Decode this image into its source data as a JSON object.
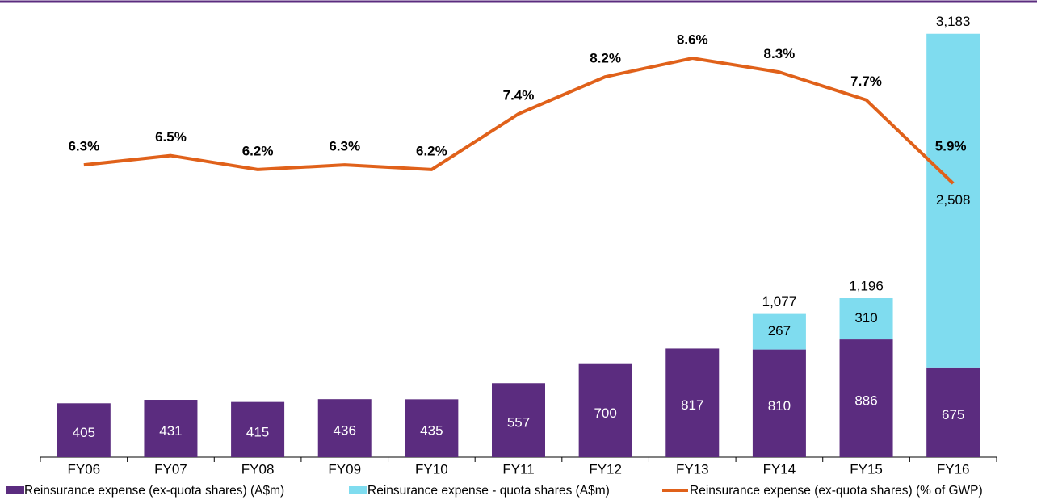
{
  "chart_data": {
    "type": "bar",
    "categories": [
      "FY06",
      "FY07",
      "FY08",
      "FY09",
      "FY10",
      "FY11",
      "FY12",
      "FY13",
      "FY14",
      "FY15",
      "FY16"
    ],
    "series": [
      {
        "name": "Reinsurance expense (ex-quota shares) (A$m)",
        "color": "#5b2c7f",
        "type": "bar",
        "values": [
          405,
          431,
          415,
          436,
          435,
          557,
          700,
          817,
          810,
          886,
          675
        ]
      },
      {
        "name": "Reinsurance expense - quota shares (A$m)",
        "color": "#7fdcef",
        "type": "bar",
        "values": [
          null,
          null,
          null,
          null,
          null,
          null,
          null,
          null,
          267,
          310,
          2508
        ],
        "value_labels": [
          null,
          null,
          null,
          null,
          null,
          null,
          null,
          null,
          "267",
          "310",
          "2,508"
        ]
      },
      {
        "name": "Reinsurance expense (ex-quota shares) (% of GWP)",
        "color": "#e0611a",
        "type": "line",
        "axis": "y2",
        "values": [
          6.3,
          6.5,
          6.2,
          6.3,
          6.2,
          7.4,
          8.2,
          8.6,
          8.3,
          7.7,
          5.9
        ],
        "value_labels": [
          "6.3%",
          "6.5%",
          "6.2%",
          "6.3%",
          "6.2%",
          "7.4%",
          "8.2%",
          "8.6%",
          "8.3%",
          "7.7%",
          "5.9%"
        ]
      }
    ],
    "totals": {
      "values": [
        null,
        null,
        null,
        null,
        null,
        null,
        null,
        null,
        1077,
        1196,
        3183
      ],
      "value_labels": [
        null,
        null,
        null,
        null,
        null,
        null,
        null,
        null,
        "1,077",
        "1,196",
        "3,183"
      ]
    },
    "ylim": [
      0,
      3400
    ],
    "y2lim": [
      0,
      9.75
    ],
    "stacked": true,
    "legend": "bottom"
  }
}
